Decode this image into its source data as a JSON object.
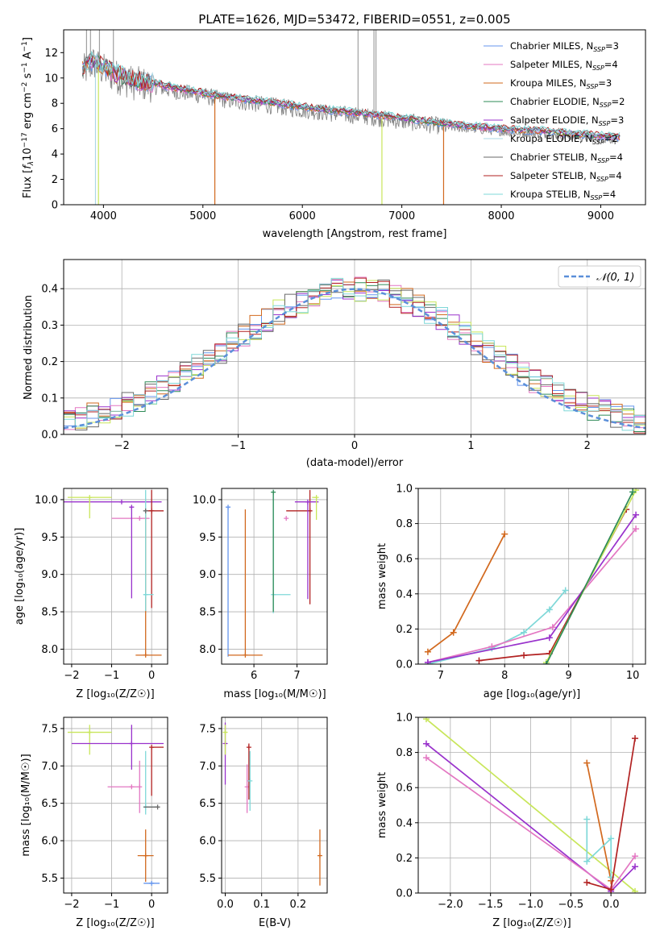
{
  "figure": {
    "title": "PLATE=1626, MJD=53472, FIBERID=0551, z=0.005",
    "legend_colors": {
      "Chabrier MILES": "#6495ED",
      "Salpeter MILES": "#E377C2",
      "Kroupa MILES": "#D2691E",
      "Chabrier ELODIE": "#2E8B57",
      "Salpeter ELODIE": "#9932CC",
      "Kroupa ELODIE": "#ADD8E6",
      "Chabrier STELIB": "#696969",
      "Salpeter STELIB": "#B22222",
      "Kroupa STELIB": "#7FD8D8"
    }
  },
  "chart_data": [
    {
      "id": "spectrum",
      "type": "line",
      "title": "PLATE=1626, MJD=53472, FIBERID=0551, z=0.005",
      "xlabel": "wavelength [Angstrom, rest frame]",
      "ylabel_prefix": "Flux [",
      "ylabel": "Flux [fλ10⁻¹⁷ erg cm⁻² s⁻¹ A⁻¹]",
      "xlim": [
        3600,
        9450
      ],
      "ylim": [
        0,
        13.8
      ],
      "xticks": [
        4000,
        5000,
        6000,
        7000,
        8000,
        9000
      ],
      "yticks": [
        0,
        2,
        4,
        6,
        8,
        10,
        12
      ],
      "grid": false,
      "legend_placement": "upper-right",
      "legend": [
        {
          "label": "Chabrier MILES, N",
          "sub": "SSP",
          "suffix": "=3",
          "color": "#6495ED"
        },
        {
          "label": "Salpeter MILES, N",
          "sub": "SSP",
          "suffix": "=4",
          "color": "#E377C2"
        },
        {
          "label": "Kroupa MILES, N",
          "sub": "SSP",
          "suffix": "=3",
          "color": "#D2691E"
        },
        {
          "label": "Chabrier ELODIE, N",
          "sub": "SSP",
          "suffix": "=2",
          "color": "#2E8B57"
        },
        {
          "label": "Salpeter ELODIE, N",
          "sub": "SSP",
          "suffix": "=3",
          "color": "#9932CC"
        },
        {
          "label": "Kroupa ELODIE, N",
          "sub": "SSP",
          "suffix": "=2",
          "color": "#ADD8E6"
        },
        {
          "label": "Chabrier STELIB, N",
          "sub": "SSP",
          "suffix": "=4",
          "color": "#696969"
        },
        {
          "label": "Salpeter STELIB, N",
          "sub": "SSP",
          "suffix": "=4",
          "color": "#B22222"
        },
        {
          "label": "Kroupa STELIB, N",
          "sub": "SSP",
          "suffix": "=4",
          "color": "#7FD8D8"
        }
      ],
      "continuum": {
        "x": [
          3800,
          3900,
          4000,
          4100,
          4200,
          4300,
          4500,
          4700,
          5000,
          5200,
          5500,
          5800,
          6000,
          6300,
          6600,
          6900,
          7200,
          7500,
          7800,
          8100,
          8400,
          8700,
          9000,
          9200
        ],
        "y": [
          10.5,
          11.2,
          10.6,
          10.2,
          9.9,
          9.6,
          9.4,
          9.0,
          8.6,
          8.3,
          8.0,
          7.7,
          7.5,
          7.2,
          7.0,
          6.7,
          6.4,
          6.1,
          5.9,
          5.7,
          5.6,
          5.4,
          5.2,
          5.1
        ]
      },
      "observed_color": "#808080",
      "dropouts": [
        {
          "x": 3920,
          "color": "#ADD8E6"
        },
        {
          "x": 3950,
          "color": "#C8E65A"
        },
        {
          "x": 5120,
          "color": "#D2691E"
        },
        {
          "x": 6800,
          "color": "#C8E65A"
        },
        {
          "x": 7420,
          "color": "#D2691E"
        }
      ]
    },
    {
      "id": "residuals",
      "type": "line",
      "xlabel": "(data-model)/error",
      "ylabel": "Normed distribution",
      "xlim": [
        -2.5,
        2.5
      ],
      "ylim": [
        0,
        0.48
      ],
      "xticks": [
        -2,
        -1,
        0,
        1,
        2
      ],
      "xticklabels": [
        "−2",
        "−1",
        "0",
        "1",
        "2"
      ],
      "yticks": [
        0,
        0.1,
        0.2,
        0.3,
        0.4
      ],
      "yticklabels": [
        "0.0",
        "0.1",
        "0.2",
        "0.3",
        "0.4"
      ],
      "grid": true,
      "legend_placement": "upper-right",
      "normal_label": "𝒩(0, 1)",
      "normal_color": "#5B8FD9",
      "histogram_bin_width": 0.1,
      "histogram_colors": [
        "#6495ED",
        "#E377C2",
        "#D2691E",
        "#2E8B57",
        "#9932CC",
        "#C8E65A",
        "#696969",
        "#B22222",
        "#7FD8D8"
      ]
    },
    {
      "id": "age-vs-Z",
      "type": "scatter",
      "xlabel": "Z [log₁₀(Z/Z☉)]",
      "ylabel": "age  [log₁₀(age/yr)]",
      "xlim": [
        -2.2,
        0.4
      ],
      "ylim": [
        7.8,
        10.15
      ],
      "xticks": [
        -2,
        -1,
        0
      ],
      "xticklabels": [
        "−2",
        "−1",
        "0"
      ],
      "yticks": [
        8.0,
        8.5,
        9.0,
        9.5,
        10.0
      ],
      "yticklabels": [
        "8.0",
        "8.5",
        "9.0",
        "9.5",
        "10.0"
      ],
      "grid": true,
      "points": [
        {
          "x": -0.75,
          "y": 9.97,
          "xerr": [
            1.45,
            1.0
          ],
          "yerr": [
            0.0,
            0.0
          ],
          "color": "#9932CC"
        },
        {
          "x": -1.55,
          "y": 10.03,
          "xerr": [
            0.55,
            0.55
          ],
          "yerr": [
            0.28,
            0.0
          ],
          "color": "#C8E65A"
        },
        {
          "x": -0.3,
          "y": 9.75,
          "xerr": [
            0.7,
            0.25
          ],
          "yerr": [
            0.0,
            0.0
          ],
          "color": "#E377C2"
        },
        {
          "x": -0.5,
          "y": 9.9,
          "xerr": [
            0.0,
            0.0
          ],
          "yerr": [
            1.22,
            0.0
          ],
          "color": "#9932CC"
        },
        {
          "x": -0.15,
          "y": 7.92,
          "xerr": [
            0.25,
            0.4
          ],
          "yerr": [
            0.0,
            1.95
          ],
          "color": "#D2691E"
        },
        {
          "x": 0.0,
          "y": 9.85,
          "xerr": [
            0.15,
            0.3
          ],
          "yerr": [
            1.3,
            0.28
          ],
          "color": "#B22222"
        },
        {
          "x": -0.15,
          "y": 8.73,
          "xerr": [
            0.05,
            0.2
          ],
          "yerr": [
            0.22,
            1.4
          ],
          "color": "#7FD8D8"
        },
        {
          "x": -0.15,
          "y": 9.85,
          "xerr": [
            0.0,
            0.0
          ],
          "yerr": [
            0.0,
            0.0
          ],
          "color": "#696969"
        }
      ]
    },
    {
      "id": "age-vs-mass",
      "type": "scatter",
      "xlabel": "mass [log₁₀(M/M☉)]",
      "ylabel": "",
      "xlim": [
        5.25,
        7.7
      ],
      "ylim": [
        7.8,
        10.15
      ],
      "xticks": [
        6,
        7
      ],
      "xticklabels": [
        "6",
        "7"
      ],
      "yticks": [
        8.0,
        8.5,
        9.0,
        9.5,
        10.0
      ],
      "yticklabels": [
        "8.0",
        "8.5",
        "9.0",
        "9.5",
        "10.0"
      ],
      "grid": true,
      "points": [
        {
          "x": 5.4,
          "y": 9.9,
          "xerr": [
            0.0,
            0.0
          ],
          "yerr": [
            2.0,
            0.0
          ],
          "color": "#6495ED"
        },
        {
          "x": 5.8,
          "y": 7.92,
          "xerr": [
            0.4,
            0.4
          ],
          "yerr": [
            0.0,
            1.95
          ],
          "color": "#D2691E"
        },
        {
          "x": 6.45,
          "y": 8.73,
          "xerr": [
            0.0,
            0.4
          ],
          "yerr": [
            0.25,
            1.4
          ],
          "color": "#7FD8D8"
        },
        {
          "x": 6.45,
          "y": 10.1,
          "xerr": [
            0.0,
            0.0
          ],
          "yerr": [
            1.6,
            0.0
          ],
          "color": "#2E8B57"
        },
        {
          "x": 6.75,
          "y": 9.75,
          "xerr": [
            0.0,
            0.0
          ],
          "yerr": [
            0.0,
            0.0
          ],
          "color": "#E377C2"
        },
        {
          "x": 7.3,
          "y": 9.85,
          "xerr": [
            0.55,
            0.0
          ],
          "yerr": [
            1.25,
            0.28
          ],
          "color": "#B22222"
        },
        {
          "x": 7.25,
          "y": 9.97,
          "xerr": [
            0.3,
            0.25
          ],
          "yerr": [
            1.3,
            0.0
          ],
          "color": "#9932CC"
        },
        {
          "x": 7.45,
          "y": 10.03,
          "xerr": [
            0.1,
            0.0
          ],
          "yerr": [
            0.3,
            0.0
          ],
          "color": "#C8E65A"
        }
      ]
    },
    {
      "id": "weight-vs-age",
      "type": "line",
      "xlabel": "age  [log₁₀(age/yr)]",
      "ylabel": "mass weight",
      "xlim": [
        6.65,
        10.2
      ],
      "ylim": [
        0,
        1.0
      ],
      "xticks": [
        7,
        8,
        9,
        10
      ],
      "xticklabels": [
        "7",
        "8",
        "9",
        "10"
      ],
      "yticks": [
        0,
        0.2,
        0.4,
        0.6,
        0.8,
        1.0
      ],
      "yticklabels": [
        "0.0",
        "0.2",
        "0.4",
        "0.6",
        "0.8",
        "1.0"
      ],
      "grid": true,
      "series": [
        {
          "color": "#D2691E",
          "x": [
            6.8,
            7.2,
            8.0
          ],
          "y": [
            0.07,
            0.18,
            0.74
          ]
        },
        {
          "color": "#7FD8D8",
          "x": [
            6.8,
            7.8,
            8.3,
            8.7,
            8.95
          ],
          "y": [
            0.0,
            0.09,
            0.18,
            0.31,
            0.42
          ]
        },
        {
          "color": "#E377C2",
          "x": [
            6.8,
            7.8,
            8.75,
            10.05
          ],
          "y": [
            0.01,
            0.1,
            0.21,
            0.77
          ]
        },
        {
          "color": "#9932CC",
          "x": [
            6.8,
            8.7,
            10.05
          ],
          "y": [
            0.01,
            0.15,
            0.85
          ]
        },
        {
          "color": "#B22222",
          "x": [
            7.6,
            8.3,
            8.7,
            9.9
          ],
          "y": [
            0.02,
            0.05,
            0.06,
            0.88
          ]
        },
        {
          "color": "#C8E65A",
          "x": [
            8.65,
            10.05
          ],
          "y": [
            0.01,
            0.99
          ]
        },
        {
          "color": "#2E8B57",
          "x": [
            8.65,
            10.0
          ],
          "y": [
            0.0,
            0.98
          ]
        }
      ]
    },
    {
      "id": "mass-vs-Z",
      "type": "scatter",
      "xlabel": "Z [log₁₀(Z/Z☉)]",
      "ylabel": "mass [log₁₀(M/M☉)]",
      "xlim": [
        -2.2,
        0.4
      ],
      "ylim": [
        5.3,
        7.65
      ],
      "xticks": [
        -2,
        -1,
        0
      ],
      "xticklabels": [
        "−2",
        "−1",
        "0"
      ],
      "yticks": [
        5.5,
        6.0,
        6.5,
        7.0,
        7.5
      ],
      "yticklabels": [
        "5.5",
        "6.0",
        "6.5",
        "7.0",
        "7.5"
      ],
      "grid": true,
      "points": [
        {
          "x": -1.55,
          "y": 7.45,
          "xerr": [
            0.55,
            0.55
          ],
          "yerr": [
            0.3,
            0.1
          ],
          "color": "#C8E65A"
        },
        {
          "x": -0.5,
          "y": 7.3,
          "xerr": [
            1.5,
            0.8
          ],
          "yerr": [
            0.35,
            0.25
          ],
          "color": "#9932CC"
        },
        {
          "x": -0.5,
          "y": 6.72,
          "xerr": [
            0.6,
            0.15
          ],
          "yerr": [
            0.0,
            0.0
          ],
          "color": "#E377C2"
        },
        {
          "x": -0.3,
          "y": 6.72,
          "xerr": [
            0.0,
            0.0
          ],
          "yerr": [
            0.35,
            0.35
          ],
          "color": "#E377C2"
        },
        {
          "x": -0.15,
          "y": 6.45,
          "xerr": [
            0.0,
            0.3
          ],
          "yerr": [
            0.1,
            0.75
          ],
          "color": "#7FD8D8"
        },
        {
          "x": 0.15,
          "y": 6.45,
          "xerr": [
            0.35,
            0.0
          ],
          "yerr": [
            0.0,
            0.0
          ],
          "color": "#696969"
        },
        {
          "x": 0.0,
          "y": 7.25,
          "xerr": [
            0.0,
            0.3
          ],
          "yerr": [
            0.65,
            0.0
          ],
          "color": "#B22222"
        },
        {
          "x": -0.15,
          "y": 5.8,
          "xerr": [
            0.2,
            0.2
          ],
          "yerr": [
            0.35,
            0.35
          ],
          "color": "#D2691E"
        },
        {
          "x": 0.0,
          "y": 5.43,
          "xerr": [
            0.2,
            0.2
          ],
          "yerr": [
            0.0,
            0.0
          ],
          "color": "#6495ED"
        }
      ]
    },
    {
      "id": "mass-vs-ebv",
      "type": "scatter",
      "xlabel": "E(B-V)",
      "ylabel": "",
      "xlim": [
        -0.01,
        0.28
      ],
      "ylim": [
        5.3,
        7.65
      ],
      "xticks": [
        0.0,
        0.1,
        0.2
      ],
      "xticklabels": [
        "0.0",
        "0.1",
        "0.2"
      ],
      "yticks": [
        5.5,
        6.0,
        6.5,
        7.0,
        7.5
      ],
      "yticklabels": [
        "5.5",
        "6.0",
        "6.5",
        "7.0",
        "7.5"
      ],
      "grid": true,
      "points": [
        {
          "x": 0.0,
          "y": 7.3,
          "xerr": [
            0.0,
            0.0
          ],
          "yerr": [
            0.55,
            0.28
          ],
          "color": "#9932CC"
        },
        {
          "x": 0.0,
          "y": 7.45,
          "xerr": [
            0.0,
            0.0
          ],
          "yerr": [
            0.3,
            0.1
          ],
          "color": "#C8E65A"
        },
        {
          "x": 0.06,
          "y": 6.72,
          "xerr": [
            0.0,
            0.0
          ],
          "yerr": [
            0.35,
            0.3
          ],
          "color": "#E377C2"
        },
        {
          "x": 0.065,
          "y": 7.25,
          "xerr": [
            0.0,
            0.0
          ],
          "yerr": [
            0.7,
            0.05
          ],
          "color": "#B22222"
        },
        {
          "x": 0.068,
          "y": 6.8,
          "xerr": [
            0.0,
            0.0
          ],
          "yerr": [
            0.4,
            0.4
          ],
          "color": "#7FD8D8"
        },
        {
          "x": 0.26,
          "y": 5.8,
          "xerr": [
            0.0,
            0.0
          ],
          "yerr": [
            0.4,
            0.35
          ],
          "color": "#D2691E"
        }
      ]
    },
    {
      "id": "weight-vs-Z",
      "type": "line",
      "xlabel": "Z [log₁₀(Z/Z☉)]",
      "ylabel": "mass weight",
      "xlim": [
        -2.4,
        0.43
      ],
      "ylim": [
        0,
        1.0
      ],
      "xticks": [
        -2.0,
        -1.5,
        -1.0,
        -0.5,
        0.0
      ],
      "xticklabels": [
        "−2.0",
        "−1.5",
        "−1.0",
        "−0.5",
        "0.0"
      ],
      "yticks": [
        0,
        0.2,
        0.4,
        0.6,
        0.8,
        1.0
      ],
      "yticklabels": [
        "0.0",
        "0.2",
        "0.4",
        "0.6",
        "0.8",
        "1.0"
      ],
      "grid": true,
      "series": [
        {
          "color": "#C8E65A",
          "x": [
            -2.3,
            0.3
          ],
          "y": [
            0.99,
            0.01
          ]
        },
        {
          "color": "#9932CC",
          "x": [
            -2.3,
            0.0,
            0.3
          ],
          "y": [
            0.85,
            0.01,
            0.15
          ]
        },
        {
          "color": "#E377C2",
          "x": [
            -2.3,
            0.0,
            0.3
          ],
          "y": [
            0.77,
            0.02,
            0.21
          ]
        },
        {
          "color": "#D2691E",
          "x": [
            -0.3,
            0.0
          ],
          "y": [
            0.74,
            0.07
          ]
        },
        {
          "color": "#7FD8D8",
          "x": [
            -0.3,
            -0.3,
            0.0,
            0.0
          ],
          "y": [
            0.42,
            0.18,
            0.31,
            0.09
          ]
        },
        {
          "color": "#B22222",
          "x": [
            -0.3,
            0.0,
            0.3
          ],
          "y": [
            0.06,
            0.02,
            0.88
          ]
        }
      ]
    }
  ]
}
